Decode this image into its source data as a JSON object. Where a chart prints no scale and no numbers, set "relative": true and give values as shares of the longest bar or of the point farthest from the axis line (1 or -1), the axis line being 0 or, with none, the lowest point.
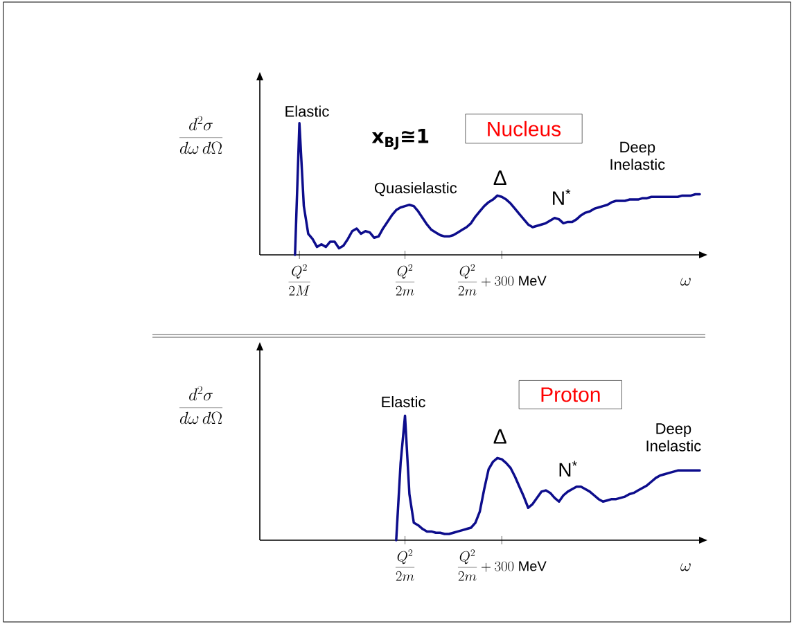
{
  "chart_data": [
    {
      "type": "line",
      "relative": true,
      "tick_labels": "x",
      "title": "Nucleus",
      "xlabel": "\\omega",
      "ylabel": "\\frac{d^{2}\\sigma}{d\\omega\\, d\\Omega}",
      "color": "#0d0d8c",
      "categories": [
        null,
        null,
        null,
        null,
        null,
        null,
        null,
        null,
        null,
        "\\frac{Q^{2}}{2M}",
        null,
        null,
        null,
        null,
        null,
        null,
        null,
        null,
        null,
        null,
        null,
        null,
        null,
        null,
        null,
        null,
        null,
        null,
        null,
        null,
        null,
        null,
        null,
        "\\frac{Q^{2}}{2m}",
        null,
        null,
        null,
        null,
        null,
        null,
        null,
        null,
        null,
        null,
        null,
        null,
        null,
        null,
        null,
        null,
        null,
        null,
        null,
        null,
        null,
        "\\frac{Q^{2}}{2m}+300\\ \\mathrm{MeV}",
        null,
        null,
        null,
        null,
        null,
        null,
        null,
        null,
        null,
        null,
        null,
        null,
        null,
        null,
        null,
        null,
        null,
        null,
        null,
        null,
        null,
        null,
        null,
        null,
        null,
        null,
        null,
        null,
        null,
        null,
        null,
        null,
        null,
        null,
        null,
        null,
        null,
        null,
        null,
        null,
        null,
        null,
        null,
        null,
        null
      ],
      "values": [
        null,
        null,
        null,
        null,
        null,
        null,
        null,
        null,
        0,
        1,
        0.37,
        0.16,
        0.12,
        0.06,
        0.08,
        0.06,
        0.1,
        0.1,
        0.05,
        0.07,
        0.12,
        0.18,
        0.2,
        0.16,
        0.18,
        0.17,
        0.13,
        0.14,
        0.2,
        0.25,
        0.3,
        0.34,
        0.36,
        0.37,
        0.38,
        0.37,
        0.33,
        0.28,
        0.23,
        0.19,
        0.17,
        0.15,
        0.14,
        0.14,
        0.15,
        0.17,
        0.19,
        0.21,
        0.24,
        0.29,
        0.33,
        0.37,
        0.4,
        0.42,
        0.45,
        0.44,
        0.42,
        0.39,
        0.35,
        0.31,
        0.27,
        0.23,
        0.21,
        0.22,
        0.23,
        0.24,
        0.26,
        0.28,
        0.27,
        0.24,
        0.25,
        0.25,
        0.27,
        0.3,
        0.32,
        0.33,
        0.35,
        0.36,
        0.37,
        0.38,
        0.4,
        0.41,
        0.41,
        0.41,
        0.42,
        0.42,
        0.42,
        0.43,
        0.43,
        0.44,
        0.44,
        0.44,
        0.44,
        0.44,
        0.44,
        0.44,
        0.45,
        0.45,
        0.45,
        0.46,
        0.46
      ],
      "annotations": [
        "Elastic",
        "Quasielastic",
        "Δ",
        "N$^{*}$",
        "Deep Inelastic",
        "x$_{BJ}$≅1"
      ]
    },
    {
      "type": "line",
      "relative": true,
      "tick_labels": "x",
      "title": "Proton",
      "xlabel": "\\omega",
      "ylabel": "\\frac{d^{2}\\sigma}{d\\omega\\, d\\Omega}",
      "color": "#0d0d8c",
      "categories": [
        null,
        null,
        null,
        null,
        null,
        null,
        null,
        null,
        null,
        null,
        null,
        null,
        null,
        null,
        null,
        null,
        null,
        null,
        null,
        null,
        null,
        null,
        null,
        null,
        null,
        null,
        null,
        null,
        null,
        null,
        null,
        null,
        null,
        "\\frac{Q^{2}}{2m}",
        null,
        null,
        null,
        null,
        null,
        null,
        null,
        null,
        null,
        null,
        null,
        null,
        null,
        null,
        null,
        null,
        null,
        null,
        null,
        null,
        null,
        "\\frac{Q^{2}}{2m}+300\\ \\mathrm{MeV}",
        null,
        null,
        null,
        null,
        null,
        null,
        null,
        null,
        null,
        null,
        null,
        null,
        null,
        null,
        null,
        null,
        null,
        null,
        null,
        null,
        null,
        null,
        null,
        null,
        null,
        null,
        null,
        null,
        null,
        null,
        null,
        null,
        null,
        null,
        null,
        null,
        null,
        null,
        null,
        null,
        null,
        null,
        null,
        null,
        null
      ],
      "values": [
        null,
        null,
        null,
        null,
        null,
        null,
        null,
        null,
        null,
        null,
        null,
        null,
        null,
        null,
        null,
        null,
        null,
        null,
        null,
        null,
        null,
        null,
        null,
        null,
        null,
        null,
        null,
        null,
        null,
        null,
        null,
        0,
        0.62,
        1,
        0.37,
        0.14,
        0.12,
        0.09,
        0.07,
        0.07,
        0.06,
        0.06,
        0.05,
        0.05,
        0.06,
        0.07,
        0.08,
        0.09,
        0.1,
        0.14,
        0.23,
        0.41,
        0.57,
        0.63,
        0.66,
        0.65,
        0.62,
        0.58,
        0.51,
        0.43,
        0.35,
        0.26,
        0.29,
        0.34,
        0.39,
        0.4,
        0.38,
        0.34,
        0.31,
        0.36,
        0.39,
        0.41,
        0.43,
        0.43,
        0.41,
        0.39,
        0.36,
        0.33,
        0.31,
        0.32,
        0.33,
        0.33,
        0.34,
        0.35,
        0.37,
        0.38,
        0.4,
        0.42,
        0.44,
        0.47,
        0.5,
        0.52,
        0.53,
        0.54,
        0.55,
        0.56,
        0.56,
        0.56,
        0.56,
        0.56,
        0.56
      ],
      "annotations": [
        "Elastic",
        "Δ",
        "N$^{*}$",
        "Deep Inelastic"
      ]
    }
  ]
}
